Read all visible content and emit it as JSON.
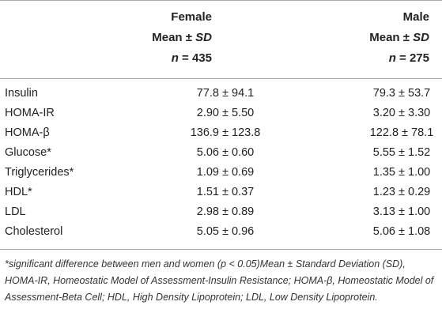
{
  "header": {
    "female": {
      "group": "Female",
      "stat_prefix": "Mean ± ",
      "stat_sd": "SD",
      "n_label": "n",
      "n_value": " = 435"
    },
    "male": {
      "group": "Male",
      "stat_prefix": "Mean ± ",
      "stat_sd": "SD",
      "n_label": "n",
      "n_value": " = 275"
    }
  },
  "rows": [
    {
      "label": "Insulin",
      "female": "77.8 ± 94.1",
      "male": "79.3 ± 53.7"
    },
    {
      "label": "HOMA-IR",
      "female": "2.90 ± 5.50",
      "male": "3.20 ± 3.30"
    },
    {
      "label": "HOMA-β",
      "female": "136.9 ± 123.8",
      "male": "122.8 ± 78.1"
    },
    {
      "label": "Glucose*",
      "female": "5.06 ± 0.60",
      "male": "5.55 ± 1.52"
    },
    {
      "label": "Triglycerides*",
      "female": "1.09 ± 0.69",
      "male": "1.35 ± 1.00"
    },
    {
      "label": "HDL*",
      "female": "1.51 ± 0.37",
      "male": "1.23 ± 0.29"
    },
    {
      "label": "LDL",
      "female": "2.98 ± 0.89",
      "male": "3.13 ± 1.00"
    },
    {
      "label": "Cholesterol",
      "female": "5.05 ± 0.96",
      "male": "5.06 ± 1.08"
    }
  ],
  "footnote": "*significant difference between men and women (p < 0.05)Mean ± Standard Deviation (SD), HOMA-IR, Homeostatic Model of Assessment-Insulin Resistance; HOMA-β, Homeostatic Model of Assessment-Beta Cell; HDL, High Density Lipoprotein; LDL, Low Density Lipoprotein."
}
